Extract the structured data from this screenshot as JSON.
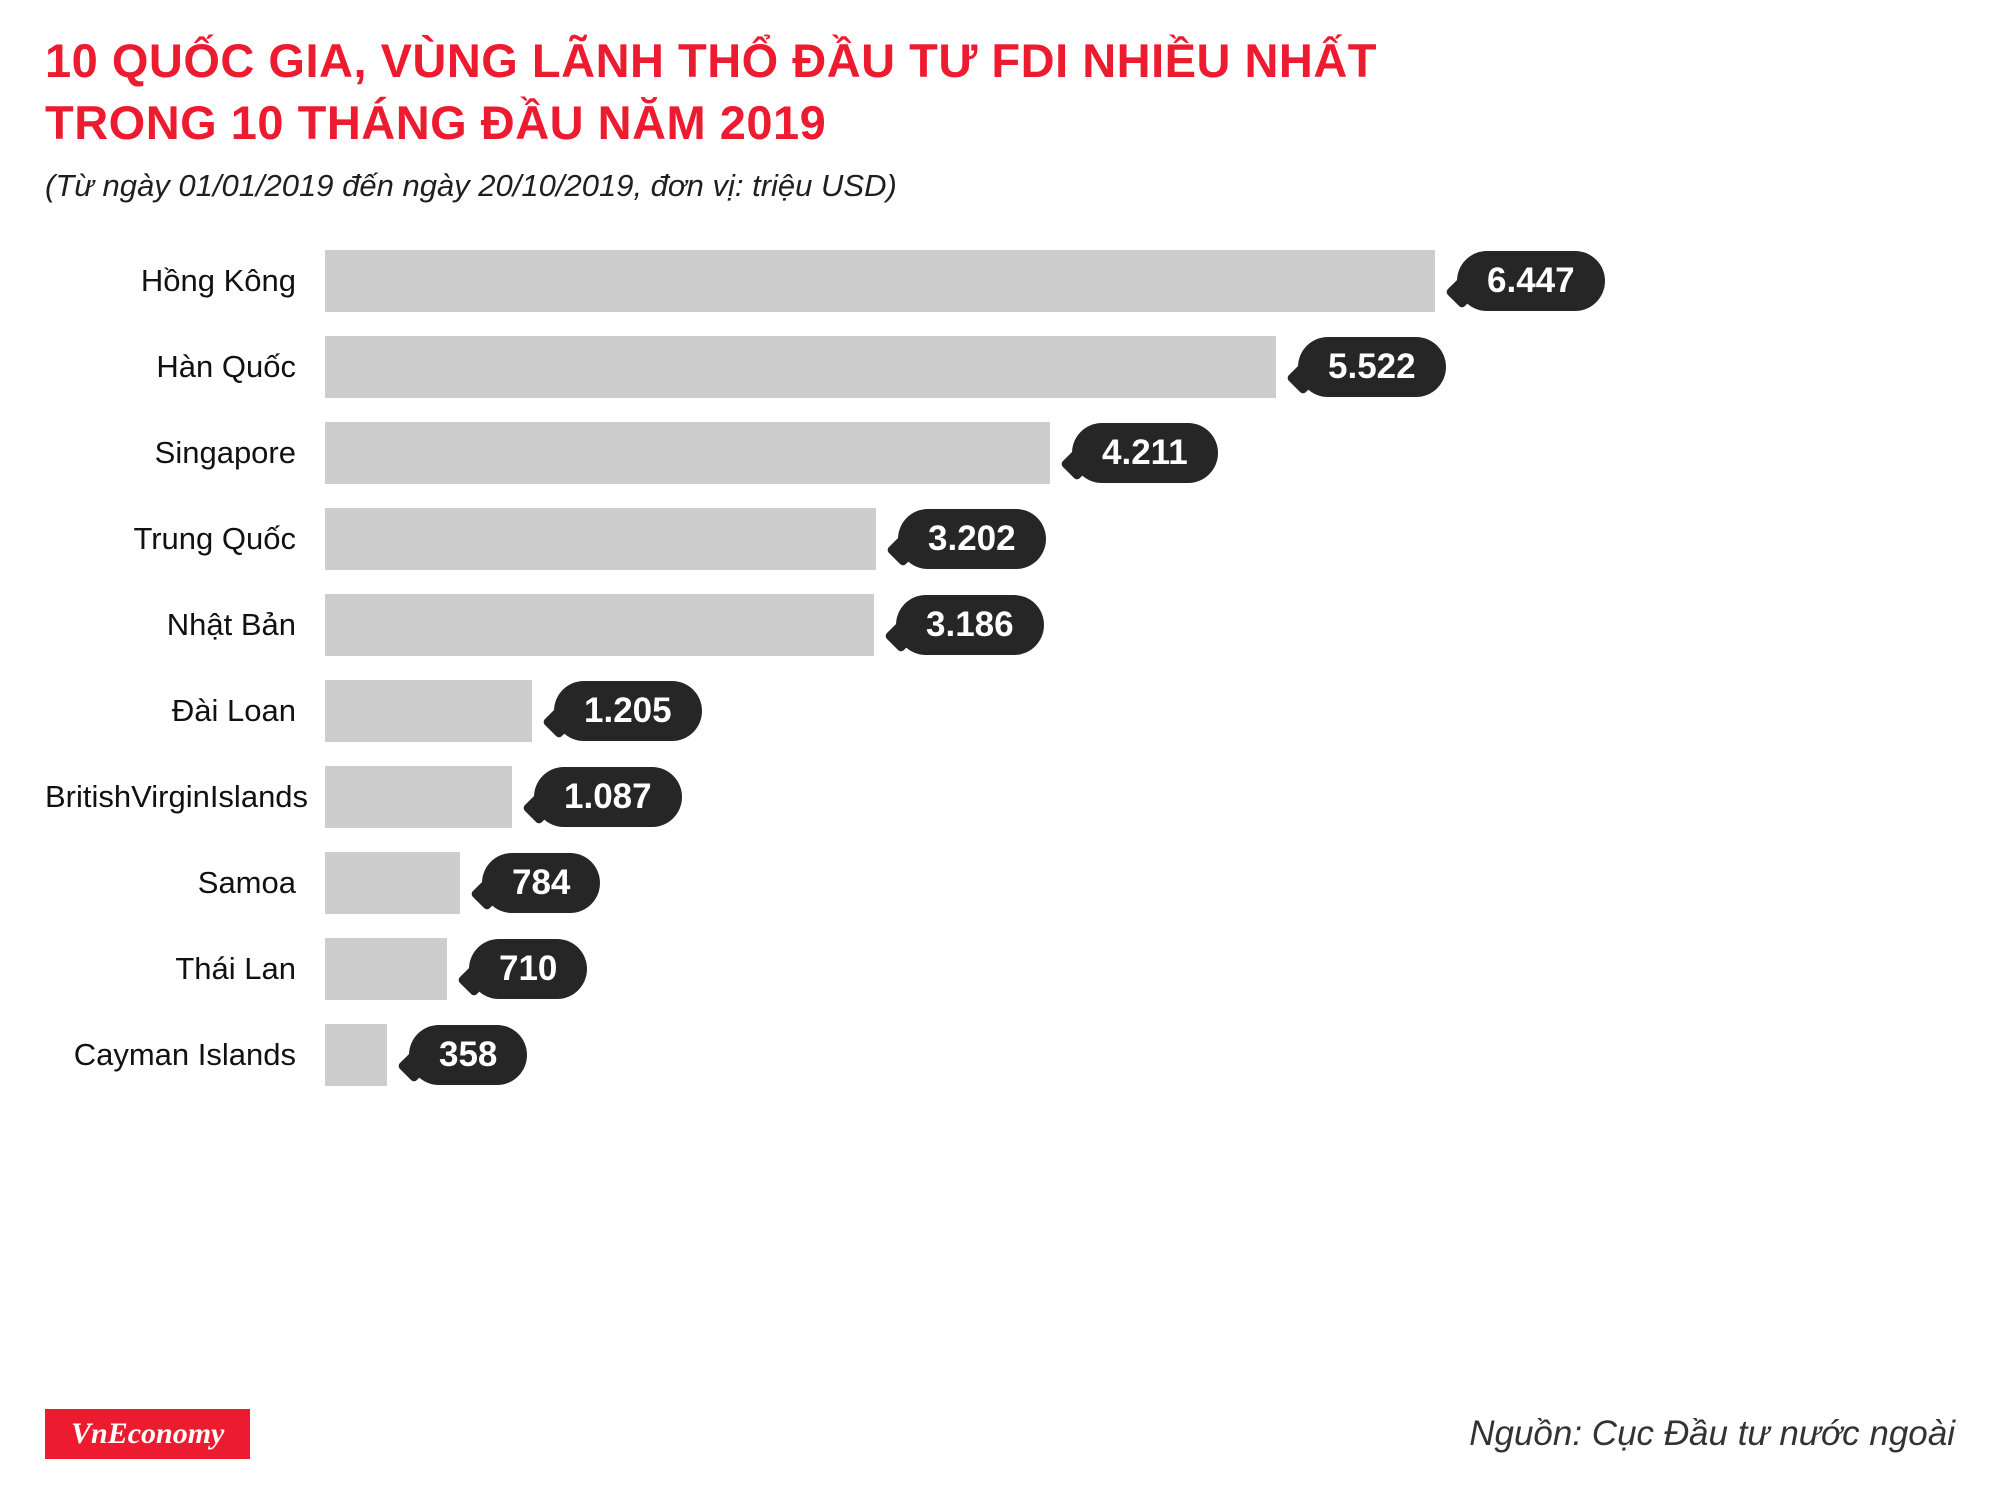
{
  "header": {
    "title_line1": "10 QUỐC GIA, VÙNG LÃNH THỔ ĐẦU TƯ FDI NHIỀU NHẤT",
    "title_line2": "TRONG 10 THÁNG ĐẦU NĂM 2019",
    "subtitle": "(Từ ngày 01/01/2019 đến ngày 20/10/2019, đơn vị: triệu USD)"
  },
  "chart_data": {
    "type": "bar",
    "orientation": "horizontal",
    "title": "10 quốc gia, vùng lãnh thổ đầu tư FDI nhiều nhất trong 10 tháng đầu năm 2019",
    "unit": "triệu USD",
    "categories": [
      "Hồng Kông",
      "Hàn Quốc",
      "Singapore",
      "Trung Quốc",
      "Nhật Bản",
      "Đài Loan",
      "BritishVirginIslands",
      "Samoa",
      "Thái Lan",
      "Cayman Islands"
    ],
    "values": [
      6447,
      5522,
      4211,
      3202,
      3186,
      1205,
      1087,
      784,
      710,
      358
    ],
    "value_labels": [
      "6.447",
      "5.522",
      "4.211",
      "3.202",
      "3.186",
      "1.205",
      "1.087",
      "784",
      "710",
      "358"
    ],
    "xlim": [
      0,
      6447
    ],
    "grid": false,
    "legend": "none",
    "bar_color": "#cdcdce",
    "badge_color": "#262626"
  },
  "footer": {
    "brand": "VnEconomy",
    "source": "Nguồn: Cục Đầu tư nước ngoài"
  },
  "colors": {
    "title_red": "#ed1b2f",
    "bar_gray": "#cdcdce",
    "badge_dark": "#262626",
    "brand_red": "#ed1b2f"
  }
}
